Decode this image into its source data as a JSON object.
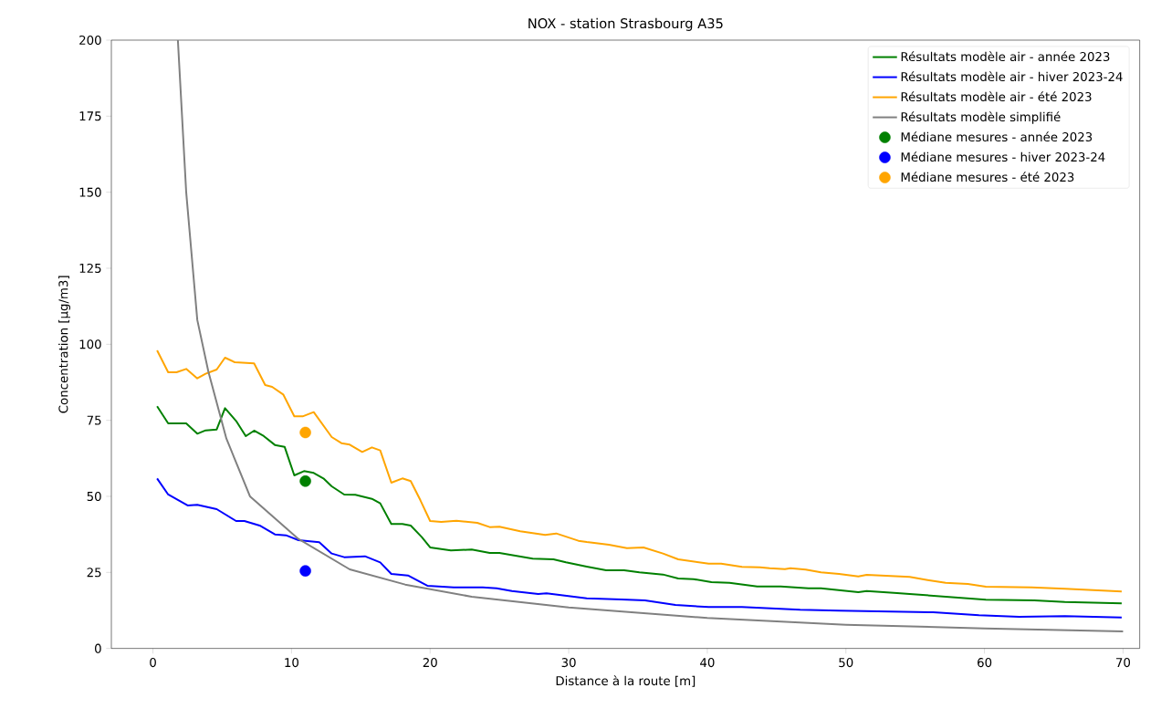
{
  "chart_data": {
    "type": "line",
    "title": "NOX - station Strasbourg A35",
    "xlabel": "Distance à la route [m]",
    "ylabel": "Concentration [µg/m3]",
    "xlim": [
      -3,
      71.2
    ],
    "ylim": [
      0,
      200
    ],
    "xticks": [
      0,
      10,
      20,
      30,
      40,
      50,
      60,
      70
    ],
    "yticks": [
      0,
      25,
      50,
      75,
      100,
      125,
      150,
      175,
      200
    ],
    "legend": "top right",
    "marker": "none",
    "line_style": "solid",
    "series": [
      {
        "name": "Résultats modèle air - année 2023",
        "color": "#008000",
        "x": [
          0.3,
          1.1,
          2.4,
          3.2,
          3.8,
          4.6,
          5.2,
          6.0,
          6.7,
          7.3,
          8.0,
          8.8,
          9.5,
          10.2,
          10.9,
          11.6,
          12.3,
          12.9,
          13.8,
          14.6,
          15.8,
          16.4,
          17.2,
          18.0,
          18.6,
          19.4,
          20.0,
          21.5,
          23.0,
          24.3,
          25.0,
          27.4,
          28.9,
          29.8,
          31.3,
          32.7,
          34.0,
          35.1,
          36.8,
          37.9,
          39.0,
          40.3,
          41.6,
          43.6,
          45.3,
          47.3,
          48.2,
          50.9,
          51.5,
          53.7,
          54.6,
          58.1,
          60.1,
          63.6,
          65.8,
          69.9
        ],
        "values": [
          79.6,
          74.0,
          74.0,
          70.6,
          71.7,
          72.0,
          79.0,
          74.8,
          69.8,
          71.6,
          69.8,
          66.9,
          66.3,
          56.9,
          58.3,
          57.7,
          55.9,
          53.3,
          50.6,
          50.5,
          49.2,
          47.7,
          40.9,
          40.9,
          40.4,
          36.6,
          33.2,
          32.2,
          32.5,
          31.4,
          31.4,
          29.5,
          29.3,
          28.3,
          26.9,
          25.7,
          25.7,
          25.0,
          24.3,
          23.0,
          22.8,
          21.8,
          21.6,
          20.4,
          20.4,
          19.8,
          19.8,
          18.5,
          18.9,
          18.2,
          17.9,
          16.7,
          16.0,
          15.8,
          15.3,
          14.8
        ]
      },
      {
        "name": "Résultats modèle air - hiver 2023-24",
        "color": "#0000ff",
        "x": [
          0.3,
          1.1,
          2.5,
          3.2,
          4.6,
          6.0,
          6.6,
          7.7,
          8.8,
          9.6,
          10.5,
          12.0,
          12.9,
          13.8,
          15.3,
          16.4,
          17.2,
          18.4,
          19.8,
          21.7,
          23.8,
          24.8,
          25.9,
          27.8,
          28.4,
          31.3,
          33.8,
          35.5,
          37.7,
          40.1,
          42.5,
          46.7,
          49.5,
          56.3,
          59.6,
          62.5,
          65.8,
          69.9
        ],
        "values": [
          55.9,
          50.6,
          47.0,
          47.2,
          45.8,
          41.9,
          41.9,
          40.4,
          37.5,
          37.2,
          35.6,
          34.9,
          31.2,
          30.0,
          30.3,
          28.3,
          24.5,
          24.0,
          20.6,
          20.1,
          20.1,
          19.8,
          18.9,
          17.9,
          18.1,
          16.5,
          16.1,
          15.8,
          14.3,
          13.6,
          13.6,
          12.7,
          12.4,
          11.9,
          10.9,
          10.4,
          10.6,
          10.2
        ]
      },
      {
        "name": "Résultats modèle air - été 2023",
        "color": "#ffa500",
        "x": [
          0.3,
          1.1,
          1.7,
          2.4,
          3.2,
          3.8,
          4.6,
          5.2,
          5.9,
          7.3,
          8.1,
          8.6,
          9.4,
          10.2,
          10.8,
          11.6,
          12.9,
          13.6,
          14.2,
          15.1,
          15.8,
          16.4,
          17.2,
          18.0,
          18.6,
          19.3,
          20.0,
          20.8,
          21.9,
          23.4,
          24.3,
          25.0,
          26.5,
          28.3,
          29.1,
          30.7,
          31.3,
          32.9,
          34.2,
          35.4,
          36.8,
          37.9,
          40.1,
          41.0,
          42.5,
          43.8,
          44.5,
          45.6,
          46.0,
          47.1,
          48.2,
          49.5,
          50.9,
          51.5,
          54.6,
          55.9,
          57.2,
          58.8,
          60.1,
          63.4,
          65.8,
          69.9
        ],
        "values": [
          98.0,
          90.8,
          90.8,
          91.9,
          88.8,
          90.3,
          91.7,
          95.6,
          94.1,
          93.7,
          86.6,
          86.0,
          83.5,
          76.3,
          76.3,
          77.7,
          69.5,
          67.5,
          67.0,
          64.6,
          66.1,
          65.1,
          54.5,
          55.9,
          55.0,
          48.7,
          41.9,
          41.6,
          42.0,
          41.3,
          39.9,
          40.0,
          38.5,
          37.3,
          37.8,
          35.4,
          35.0,
          34.1,
          33.0,
          33.2,
          31.2,
          29.3,
          27.9,
          27.9,
          26.8,
          26.7,
          26.4,
          26.1,
          26.4,
          25.9,
          25.0,
          24.5,
          23.7,
          24.2,
          23.5,
          22.5,
          21.6,
          21.2,
          20.3,
          20.1,
          19.6,
          18.7
        ]
      },
      {
        "name": "Résultats modèle simplifié",
        "color": "#808080",
        "x": [
          1.8,
          2.4,
          3.2,
          4.0,
          5.3,
          7.0,
          10.5,
          14.2,
          18.2,
          23.0,
          30.0,
          40.0,
          50.0,
          60.0,
          70.0
        ],
        "values": [
          200,
          150,
          108,
          91,
          69,
          50,
          36,
          26,
          21,
          17,
          13.5,
          10,
          7.8,
          6.6,
          5.6
        ]
      },
      {
        "name": "Médiane mesures - année 2023",
        "type": "scatter",
        "marker": "circle",
        "color": "#008000",
        "x": [
          11
        ],
        "values": [
          55
        ]
      },
      {
        "name": "Médiane mesures - hiver 2023-24",
        "type": "scatter",
        "marker": "circle",
        "color": "#0000ff",
        "x": [
          11
        ],
        "values": [
          25.5
        ]
      },
      {
        "name": "Médiane mesures - été 2023",
        "type": "scatter",
        "marker": "circle",
        "color": "#ffa500",
        "x": [
          11
        ],
        "values": [
          71
        ]
      }
    ]
  }
}
